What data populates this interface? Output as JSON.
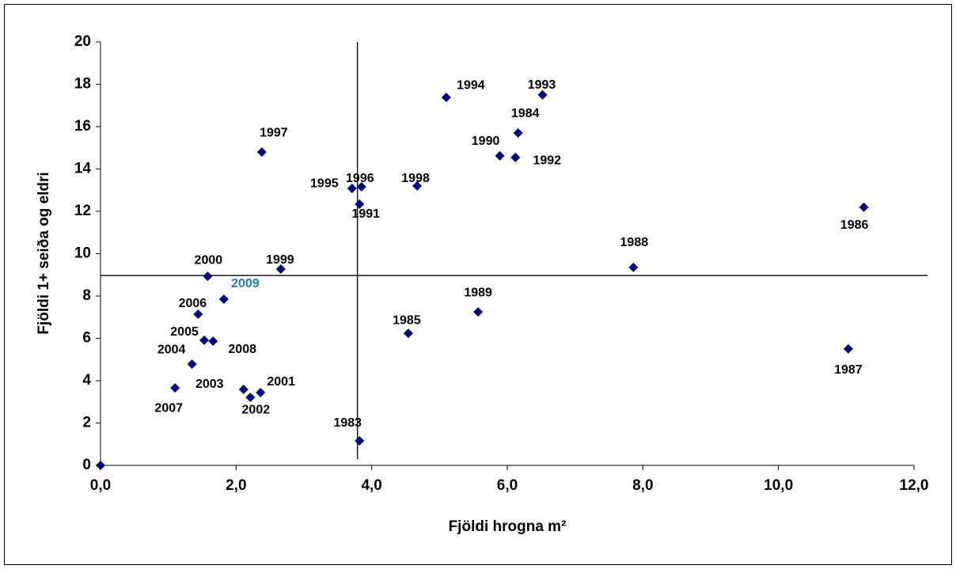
{
  "chart_data": {
    "type": "scatter",
    "x_label": "Fjöldi hrogna m²",
    "y_label": "Fjöldi 1+ seiða og eldri",
    "x": [
      0,
      3.82,
      6.16,
      4.54,
      11.26,
      11.03,
      7.86,
      5.57,
      5.89,
      3.82,
      6.12,
      6.52,
      5.1,
      3.71,
      3.85,
      2.38,
      4.67,
      2.66,
      1.58,
      2.36,
      2.21,
      2.11,
      1.35,
      1.53,
      1.44,
      1.1,
      1.66,
      1.82
    ],
    "values": [
      0,
      1.16,
      15.7,
      6.24,
      12.19,
      5.5,
      9.35,
      7.25,
      14.62,
      12.34,
      14.54,
      17.5,
      17.38,
      13.08,
      13.16,
      14.8,
      13.2,
      9.27,
      8.93,
      3.44,
      3.21,
      3.59,
      4.78,
      5.91,
      7.14,
      3.66,
      5.87,
      7.85
    ],
    "point_labels": [
      null,
      "1983",
      "1984",
      "1985",
      "1986",
      "1987",
      "1988",
      "1989",
      "1990",
      "1991",
      "1992",
      "1993",
      "1994",
      "1995",
      "1996",
      "1997",
      "1998",
      "1999",
      "2000",
      "2001",
      "2002",
      "2003",
      "2004",
      "2005",
      "2006",
      "2007",
      "2008",
      "2009"
    ],
    "label_colors": [
      "#000000",
      "#000000",
      "#000000",
      "#000000",
      "#000000",
      "#000000",
      "#000000",
      "#000000",
      "#000000",
      "#000000",
      "#000000",
      "#000000",
      "#000000",
      "#000000",
      "#000000",
      "#000000",
      "#000000",
      "#000000",
      "#000000",
      "#000000",
      "#000000",
      "#000000",
      "#000000",
      "#000000",
      "#000000",
      "#000000",
      "#000000",
      "#1f7bc0"
    ],
    "color": "#000080",
    "ref_x": 3.79,
    "ref_y": 8.97,
    "xlim": [
      0,
      12
    ],
    "ylim": [
      0,
      20
    ],
    "xticks": [
      {
        "value": 0,
        "label": "0,0"
      },
      {
        "value": 2,
        "label": "2,0"
      },
      {
        "value": 4,
        "label": "4,0"
      },
      {
        "value": 6,
        "label": "6,0"
      },
      {
        "value": 8,
        "label": "8,0"
      },
      {
        "value": 10,
        "label": "10,0"
      },
      {
        "value": 12,
        "label": "12,0"
      }
    ],
    "yticks": [
      0,
      2,
      4,
      6,
      8,
      10,
      12,
      14,
      16,
      18,
      20
    ]
  }
}
